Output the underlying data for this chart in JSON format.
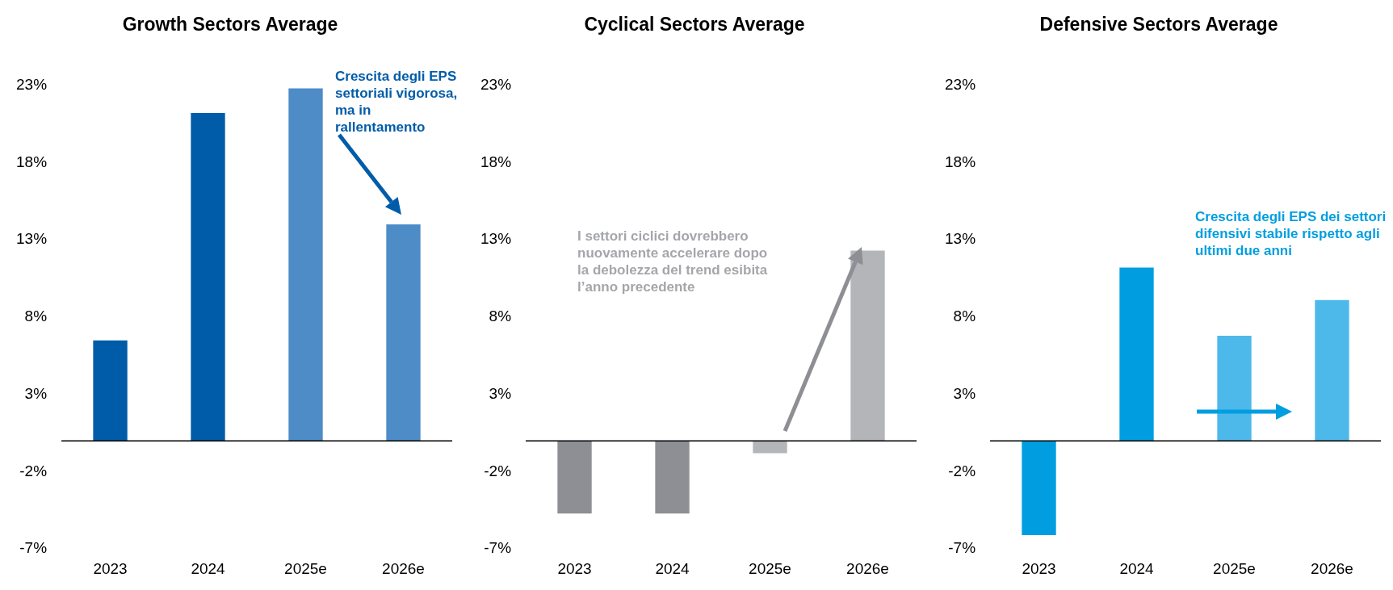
{
  "chart_data": [
    {
      "type": "bar",
      "title": "Growth Sectors Average",
      "categories": [
        "2023",
        "2024",
        "2025e",
        "2026e"
      ],
      "values": [
        6.5,
        21.2,
        22.8,
        14.0
      ],
      "colors": [
        "#005ca9",
        "#005ca9",
        "#4d8cc7",
        "#4d8cc7"
      ],
      "ylim": [
        -7,
        23
      ],
      "yticks": [
        {
          "value": -7,
          "label": "-7%"
        },
        {
          "value": -2,
          "label": "-2%"
        },
        {
          "value": 3,
          "label": "3%"
        },
        {
          "value": 8,
          "label": "8%"
        },
        {
          "value": 13,
          "label": "13%"
        },
        {
          "value": 18,
          "label": "18%"
        },
        {
          "value": 23,
          "label": "23%"
        }
      ],
      "annotations": [
        "Crescita degli EPS settoriali vigorosa, ma in rallentamento"
      ]
    },
    {
      "type": "bar",
      "title": "Cyclical Sectors Average",
      "categories": [
        "2023",
        "2024",
        "2025e",
        "2026e"
      ],
      "values": [
        -4.7,
        -4.7,
        -0.8,
        12.3
      ],
      "colors": [
        "#8e8f94",
        "#8e8f94",
        "#b4b5b9",
        "#b4b5b9"
      ],
      "ylim": [
        -7,
        23
      ],
      "yticks": [
        {
          "value": -7,
          "label": "-7%"
        },
        {
          "value": -2,
          "label": "-2%"
        },
        {
          "value": 3,
          "label": "3%"
        },
        {
          "value": 8,
          "label": "8%"
        },
        {
          "value": 13,
          "label": "13%"
        },
        {
          "value": 18,
          "label": "18%"
        },
        {
          "value": 23,
          "label": "23%"
        }
      ],
      "annotations": [
        "I settori ciclici dovrebbero nuovamente accelerare dopo la debolezza del trend esibita l’anno precedente"
      ]
    },
    {
      "type": "bar",
      "title": "Defensive Sectors Average",
      "categories": [
        "2023",
        "2024",
        "2025e",
        "2026e"
      ],
      "values": [
        -6.1,
        11.2,
        6.8,
        9.1
      ],
      "colors": [
        "#009ee0",
        "#009ee0",
        "#4db9ea",
        "#4db9ea"
      ],
      "ylim": [
        -7,
        23
      ],
      "yticks": [
        {
          "value": -7,
          "label": "-7%"
        },
        {
          "value": -2,
          "label": "-2%"
        },
        {
          "value": 3,
          "label": "3%"
        },
        {
          "value": 8,
          "label": "8%"
        },
        {
          "value": 13,
          "label": "13%"
        },
        {
          "value": 18,
          "label": "18%"
        },
        {
          "value": 23,
          "label": "23%"
        }
      ],
      "annotations": [
        "Crescita degli EPS dei settori difensivi stabile rispetto agli ultimi due anni"
      ]
    }
  ]
}
